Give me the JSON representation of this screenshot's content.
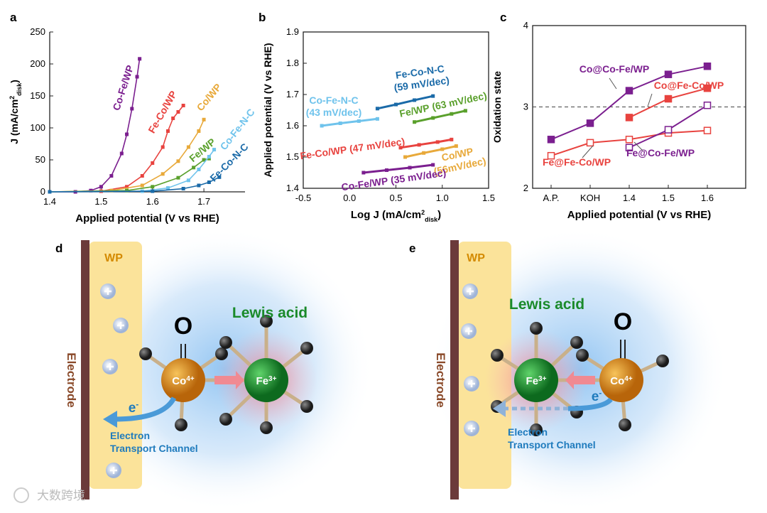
{
  "chart_data": [
    {
      "type": "line",
      "panel": "a",
      "xlabel": "Applied potential (V vs RHE)",
      "ylabel": [
        "J (mA/cm",
        "2",
        "disk",
        ")"
      ],
      "xlim": [
        1.4,
        1.78
      ],
      "xticks": [
        1.4,
        1.5,
        1.6,
        1.7
      ],
      "ylim": [
        0,
        250
      ],
      "yticks": [
        0,
        50,
        100,
        150,
        200,
        250
      ],
      "series": [
        {
          "name": "Co-Fe/WP",
          "color": "#7b1f8f",
          "x": [
            1.4,
            1.45,
            1.48,
            1.5,
            1.52,
            1.54,
            1.55,
            1.56,
            1.57,
            1.575
          ],
          "values": [
            0,
            0,
            2,
            8,
            25,
            60,
            90,
            130,
            180,
            208
          ]
        },
        {
          "name": "Fe-Co/WP",
          "color": "#e8433f",
          "x": [
            1.4,
            1.5,
            1.55,
            1.58,
            1.6,
            1.62,
            1.63,
            1.64,
            1.65,
            1.66
          ],
          "values": [
            0,
            1,
            8,
            25,
            45,
            70,
            95,
            115,
            125,
            135
          ]
        },
        {
          "name": "Co/WP",
          "color": "#e8a93a",
          "x": [
            1.4,
            1.52,
            1.58,
            1.62,
            1.65,
            1.67,
            1.69,
            1.7
          ],
          "values": [
            0,
            2,
            10,
            28,
            48,
            70,
            95,
            113
          ]
        },
        {
          "name": "Fe/WP",
          "color": "#5aa02c",
          "x": [
            1.4,
            1.55,
            1.6,
            1.65,
            1.68,
            1.7,
            1.71
          ],
          "values": [
            0,
            2,
            8,
            22,
            38,
            50,
            52
          ]
        },
        {
          "name": "Co-Fe-N-C",
          "color": "#6fc3ec",
          "x": [
            1.4,
            1.58,
            1.63,
            1.67,
            1.69,
            1.71,
            1.72
          ],
          "values": [
            0,
            1,
            6,
            18,
            35,
            55,
            66
          ]
        },
        {
          "name": "Fe-Co-N-C",
          "color": "#1a6aa8",
          "x": [
            1.4,
            1.6,
            1.66,
            1.69,
            1.71,
            1.73
          ],
          "values": [
            0,
            1,
            5,
            10,
            15,
            23
          ]
        }
      ]
    },
    {
      "type": "line",
      "panel": "b",
      "xlabel": [
        "Log J (mA/cm",
        "2",
        "disk",
        ")"
      ],
      "ylabel": "Applied potential (V vs RHE)",
      "xlim": [
        -0.5,
        1.5
      ],
      "xticks": [
        -0.5,
        {
          "value": 0,
          "label": "0.0"
        },
        0.5,
        {
          "value": 1,
          "label": "1.0"
        },
        1.5
      ],
      "ylim": [
        1.4,
        1.9
      ],
      "yticks": [
        1.4,
        1.5,
        1.6,
        1.7,
        1.8,
        1.9
      ],
      "series": [
        {
          "name": "Fe-Co-N-C",
          "annotation": "(59 mV/dec)",
          "color": "#1a6aa8",
          "x": [
            0.3,
            0.5,
            0.7,
            0.9
          ],
          "values": [
            1.655,
            1.668,
            1.682,
            1.695
          ]
        },
        {
          "name": "Co-Fe-N-C",
          "annotation": "(43 mV/dec)",
          "color": "#6fc3ec",
          "x": [
            -0.3,
            -0.1,
            0.1,
            0.3
          ],
          "values": [
            1.6,
            1.608,
            1.615,
            1.622
          ]
        },
        {
          "name": "Fe/WP",
          "annotation": "(63 mV/dec)",
          "color": "#5aa02c",
          "x": [
            0.7,
            0.9,
            1.1,
            1.25
          ],
          "values": [
            1.612,
            1.625,
            1.638,
            1.648
          ]
        },
        {
          "name": "Fe-Co/WP",
          "annotation": "(47 mV/dec)",
          "color": "#e8433f",
          "x": [
            0.55,
            0.75,
            0.95,
            1.1
          ],
          "values": [
            1.53,
            1.539,
            1.548,
            1.556
          ]
        },
        {
          "name": "Co/WP",
          "annotation": "(56mV/dec)",
          "color": "#e8a93a",
          "x": [
            0.6,
            0.8,
            1.0,
            1.15
          ],
          "values": [
            1.5,
            1.513,
            1.525,
            1.535
          ]
        },
        {
          "name": "Co-Fe/WP",
          "annotation": "(35 mV/dec)",
          "color": "#7b1f8f",
          "x": [
            0.15,
            0.4,
            0.65,
            0.9
          ],
          "values": [
            1.45,
            1.458,
            1.466,
            1.475
          ]
        }
      ]
    },
    {
      "type": "category-line",
      "panel": "c",
      "xlabel": "Applied potential (V vs RHE)",
      "ylabel": "Oxidation state",
      "categories": [
        "A.P.",
        "KOH",
        "1.4",
        "1.5",
        "1.6"
      ],
      "ylim": [
        2,
        4
      ],
      "yticks": [
        2,
        3,
        4
      ],
      "hline": 3,
      "series": [
        {
          "name": "Co@Co-Fe/WP",
          "color": "#7b1f8f",
          "filled": true,
          "values": [
            2.6,
            2.8,
            3.2,
            3.4,
            3.5
          ]
        },
        {
          "name": "Co@Fe-Co/WP",
          "color": "#e8433f",
          "filled": true,
          "values": [
            null,
            null,
            2.87,
            3.1,
            3.23
          ]
        },
        {
          "name": "Fe@Fe-Co/WP",
          "color": "#e8433f",
          "filled": false,
          "values": [
            2.4,
            2.56,
            2.6,
            2.68,
            2.71
          ]
        },
        {
          "name": "Fe@Co-Fe/WP",
          "color": "#7b1f8f",
          "filled": false,
          "values": [
            null,
            null,
            2.5,
            2.72,
            3.02
          ]
        }
      ]
    }
  ],
  "diagrams": [
    {
      "panel": "d",
      "wp": "WP",
      "electrode": "Electrode",
      "oxygen": "O",
      "co": [
        "Co",
        "4+"
      ],
      "fe": [
        "Fe",
        "3+"
      ],
      "lewis": "Lewis acid",
      "electron": [
        "e",
        "-"
      ],
      "channel": [
        "Electron",
        "Transport Channel"
      ]
    },
    {
      "panel": "e",
      "wp": "WP",
      "electrode": "Electrode",
      "oxygen": "O",
      "co": [
        "Co",
        "4+"
      ],
      "fe": [
        "Fe",
        "3+"
      ],
      "lewis": "Lewis acid",
      "electron": [
        "e",
        "-"
      ],
      "channel": [
        "Electron",
        "Transport Channel"
      ]
    }
  ],
  "watermark": "大数跨境"
}
